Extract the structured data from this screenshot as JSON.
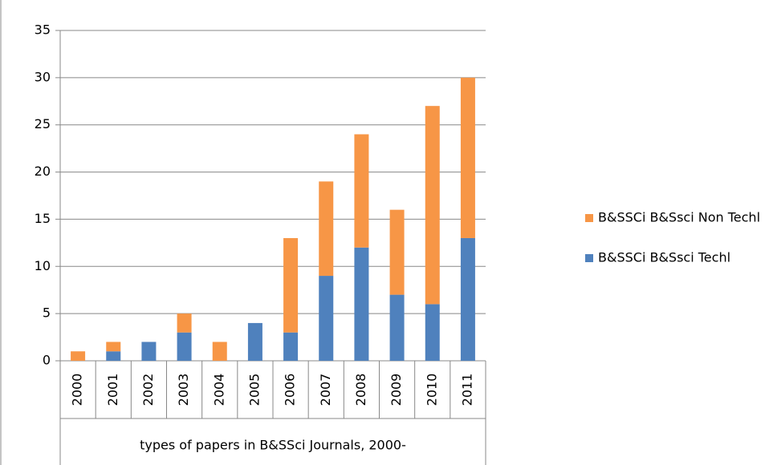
{
  "chart_data": {
    "type": "stacked_bar",
    "x_label": "types of papers in B&SSci Journals, 2000-",
    "categories": [
      "2000",
      "2001",
      "2002",
      "2003",
      "2004",
      "2005",
      "2006",
      "2007",
      "2008",
      "2009",
      "2010",
      "2011"
    ],
    "series": [
      {
        "name": "B&SSCi B&Ssci Techl",
        "color": "#4f81bd",
        "values": [
          0,
          1,
          2,
          3,
          0,
          4,
          3,
          9,
          12,
          7,
          6,
          13
        ]
      },
      {
        "name": "B&SSCi B&Ssci Non Techl",
        "color": "#f79646",
        "values": [
          1,
          1,
          0,
          2,
          2,
          0,
          10,
          10,
          12,
          9,
          21,
          17
        ]
      }
    ],
    "ylim": [
      0,
      35
    ],
    "yticks": [
      0,
      5,
      10,
      15,
      20,
      25,
      30,
      35
    ],
    "grid": true,
    "legend": "right"
  }
}
